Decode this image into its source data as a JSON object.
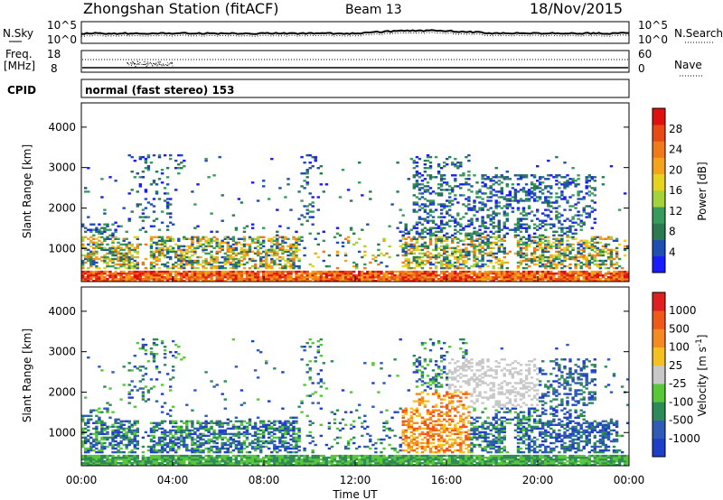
{
  "header": {
    "station": "Zhongshan Station (fitACF)",
    "beam": "Beam 13",
    "date": "18/Nov/2015"
  },
  "noise_panel": {
    "left_label": "N.Sky",
    "left_ticks": [
      "10^5",
      "10^0"
    ],
    "right_ticks": [
      "10^5",
      "10^0"
    ],
    "right_label": "N.Search"
  },
  "freq_panel": {
    "left_label_1": "Freq.",
    "left_label_2": "[MHz]",
    "left_ticks": [
      "18",
      "8"
    ],
    "right_ticks": [
      "60",
      "0"
    ],
    "right_label": "Nave"
  },
  "cpid_panel": {
    "label": "CPID",
    "text": "normal (fast stereo) 153"
  },
  "chart_data": [
    {
      "type": "heatmap",
      "name": "power",
      "ylabel": "Slant Range [km]",
      "yticks": [
        1000,
        2000,
        3000,
        4000
      ],
      "ylim": [
        180,
        4600
      ],
      "xticks": [
        "00:00",
        "04:00",
        "08:00",
        "12:00",
        "16:00",
        "20:00",
        "00:00"
      ],
      "xlim_hours": [
        0,
        24
      ],
      "colorbar": {
        "label": "Power [dB]",
        "ticks": [
          "4",
          "8",
          "12",
          "16",
          "20",
          "24",
          "28"
        ],
        "colors": [
          "#1b1bff",
          "#1f4fb0",
          "#2c7a4f",
          "#3a9a5e",
          "#a4d23a",
          "#e6d320",
          "#f5a31a",
          "#f07a18",
          "#e84a14",
          "#e01010"
        ]
      }
    },
    {
      "type": "heatmap",
      "name": "velocity",
      "ylabel": "Slant Range [km]",
      "yticks": [
        1000,
        2000,
        3000,
        4000
      ],
      "ylim": [
        180,
        4600
      ],
      "xticks": [
        "00:00",
        "04:00",
        "08:00",
        "12:00",
        "16:00",
        "20:00",
        "00:00"
      ],
      "xlim_hours": [
        0,
        24
      ],
      "xlabel": "Time UT",
      "colorbar": {
        "label": "Velocity [m s",
        "label_sup": "-1",
        "label_end": "]",
        "ticks": [
          "1000",
          "500",
          "100",
          "25",
          "-25",
          "-100",
          "-500",
          "-1000"
        ],
        "colors": [
          "#1f3fc8",
          "#2f5ab8",
          "#2f8a5a",
          "#58c83a",
          "#c8c8c8",
          "#f5c020",
          "#f58a20",
          "#f05a18",
          "#e02020"
        ]
      }
    }
  ]
}
